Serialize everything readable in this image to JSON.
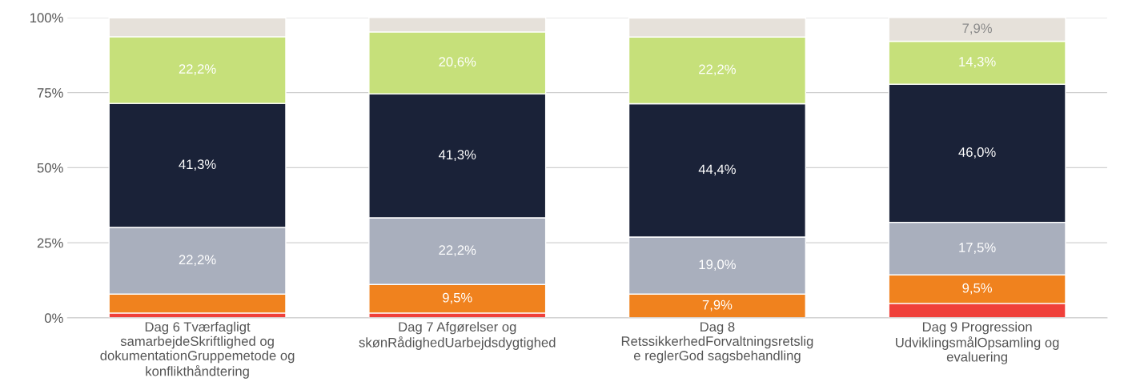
{
  "chart_data": {
    "type": "bar",
    "stacked": true,
    "categories": [
      "Dag 6 Tværfagligt\nsamarbejdeSkriftlighed og\ndokumentationGruppemetode og\nkonflikthåndtering",
      "Dag 7 Afgørelser og\nskønRådighedUarbejdsdygtighed",
      "Dag 8\nRetssikkerhedForvaltningsretslig\ne reglerGod sagsbehandling",
      "Dag 9 Progression\nUdviklingsmålOpsamling og\nevaluering"
    ],
    "series": [
      {
        "color": "#f0403a",
        "values": [
          1.6,
          1.6,
          0,
          4.8
        ],
        "value_labels": [
          null,
          null,
          null,
          null
        ]
      },
      {
        "color": "#f0821e",
        "values": [
          6.3,
          9.5,
          7.9,
          9.5
        ],
        "value_labels": [
          null,
          "9,5%",
          "7,9%",
          "9,5%"
        ]
      },
      {
        "color": "#a9afbd",
        "values": [
          22.2,
          22.2,
          19.0,
          17.5
        ],
        "value_labels": [
          "22,2%",
          "22,2%",
          "19,0%",
          "17,5%"
        ]
      },
      {
        "color": "#1a2238",
        "values": [
          41.3,
          41.3,
          44.4,
          46.0
        ],
        "value_labels": [
          "41,3%",
          "41,3%",
          "44,4%",
          "46,0%"
        ]
      },
      {
        "color": "#c6e07a",
        "values": [
          22.2,
          20.6,
          22.2,
          14.3
        ],
        "value_labels": [
          "22,2%",
          "20,6%",
          "22,2%",
          "14,3%"
        ]
      },
      {
        "color": "#e6e1da",
        "values": [
          6.3,
          4.8,
          6.3,
          7.9
        ],
        "value_labels": [
          null,
          null,
          null,
          "7,9%"
        ]
      }
    ],
    "ylim": [
      0,
      100
    ],
    "yticks": [
      {
        "value": 0,
        "label": "0%"
      },
      {
        "value": 25,
        "label": "25%"
      },
      {
        "value": 50,
        "label": "50%"
      },
      {
        "value": 75,
        "label": "75%"
      },
      {
        "value": 100,
        "label": "100%"
      }
    ],
    "grid": "y"
  }
}
